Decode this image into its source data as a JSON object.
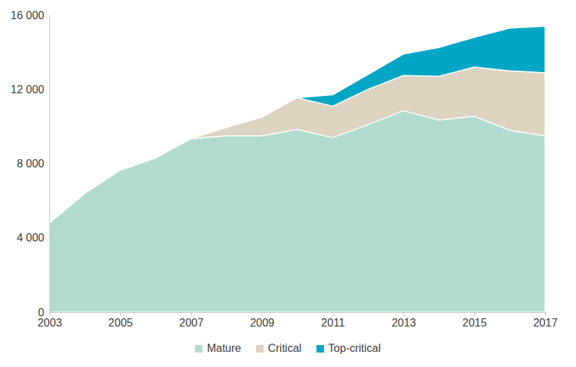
{
  "chart_data": {
    "type": "area",
    "stacked": true,
    "grid": false,
    "legend": "bottom",
    "x": [
      2003,
      2004,
      2005,
      2006,
      2007,
      2008,
      2009,
      2010,
      2011,
      2012,
      2013,
      2014,
      2015,
      2016,
      2017
    ],
    "xlim": [
      2003,
      2017
    ],
    "xticks": [
      2003,
      2005,
      2007,
      2009,
      2011,
      2013,
      2015,
      2017
    ],
    "ylim": [
      0,
      16000
    ],
    "yticks": [
      0,
      {
        "value": 4000,
        "label": "4 000"
      },
      {
        "value": 8000,
        "label": "8 000"
      },
      {
        "value": 12000,
        "label": "12 000"
      },
      {
        "value": 16000,
        "label": "16 000"
      }
    ],
    "series": [
      {
        "name": "Mature",
        "color": "#b2dbcf",
        "values": [
          4800,
          6400,
          7650,
          8300,
          9350,
          9500,
          9500,
          9850,
          9400,
          10100,
          10850,
          10350,
          10550,
          9800,
          9500
        ]
      },
      {
        "name": "Critical",
        "color": "#ddd3c1",
        "values": [
          0,
          0,
          0,
          0,
          0,
          450,
          1000,
          1700,
          1700,
          1900,
          1900,
          2350,
          2650,
          3200,
          3400
        ]
      },
      {
        "name": "Top-critical",
        "color": "#00a6c4",
        "values": [
          0,
          0,
          0,
          0,
          0,
          0,
          0,
          0,
          600,
          800,
          1150,
          1550,
          1600,
          2300,
          2500
        ]
      }
    ]
  }
}
